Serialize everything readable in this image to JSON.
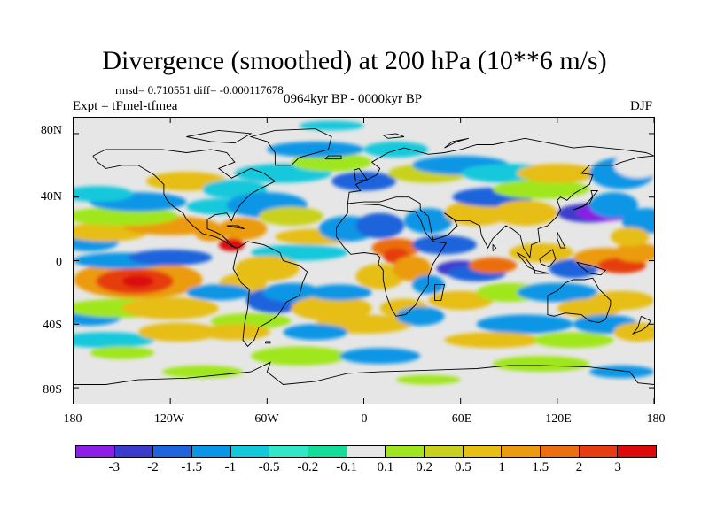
{
  "title": "Divergence (smoothed) at 200 hPa (10**6 m/s)",
  "stats": "rmsd= 0.710551 diff= -0.000117678",
  "experiment": "Expt = tFmel-tfmea",
  "period": "0964kyr BP - 0000kyr BP",
  "season": "DJF",
  "y_axis_labels": [
    "80N",
    "40N",
    "0",
    "40S",
    "80S"
  ],
  "x_axis_labels": [
    "180",
    "120W",
    "60W",
    "0",
    "60E",
    "120E",
    "180"
  ],
  "colorbar": {
    "colors": [
      "#8c1ee6",
      "#3c3ccc",
      "#1e64dc",
      "#0a96e6",
      "#14c8dc",
      "#32e6c8",
      "#14dc9a",
      "#e6e6e6",
      "#a0e61e",
      "#c8d21e",
      "#e6be14",
      "#eb9b0f",
      "#eb6e0f",
      "#e63c0f",
      "#dc0a0a"
    ],
    "labels": [
      "-3",
      "-2",
      "-1.5",
      "-1",
      "-0.5",
      "-0.2",
      "-0.1",
      "0.1",
      "0.2",
      "0.5",
      "1",
      "1.5",
      "2",
      "3"
    ]
  },
  "map": {
    "background": "#e6e6e6",
    "lon_range": [
      -180,
      180
    ],
    "lat_range": [
      -90,
      90
    ]
  }
}
